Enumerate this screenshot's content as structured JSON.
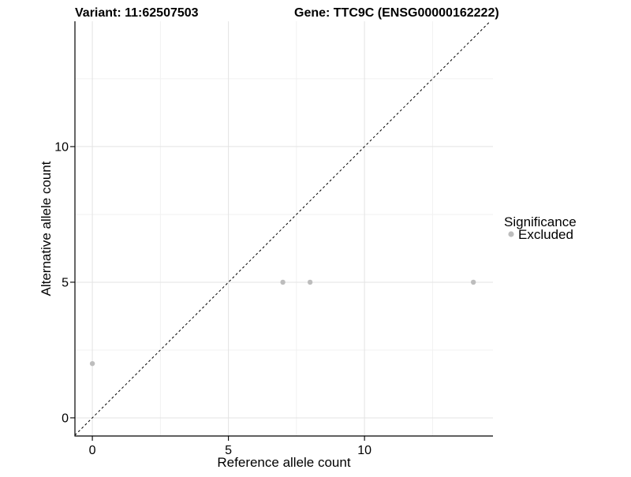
{
  "header": {
    "variant_title": "Variant: 11:62507503",
    "gene_title": "Gene: TTC9C (ENSG00000162222)"
  },
  "legend": {
    "title": "Significance",
    "items": [
      {
        "label": "Excluded",
        "color": "#bdbdbd"
      }
    ]
  },
  "chart_data": {
    "type": "scatter",
    "title": "Variant: 11:62507503 / Gene: TTC9C (ENSG00000162222)",
    "xlabel": "Reference allele count",
    "ylabel": "Alternative allele count",
    "xlim": [
      -0.64,
      14.72
    ],
    "ylim": [
      -0.67,
      14.62
    ],
    "x_ticks": [
      0,
      5,
      10
    ],
    "y_ticks": [
      0,
      5,
      10
    ],
    "x_tick_labels": [
      "0",
      "5",
      "10"
    ],
    "y_tick_labels": [
      "0",
      "5",
      "10"
    ],
    "x_minor_gridlines": [
      2.5,
      7.5,
      12.5
    ],
    "y_minor_gridlines": [
      2.5,
      7.5,
      12.5
    ],
    "grid": "major and minor, light gray on white",
    "legend_position": "right",
    "series": [
      {
        "name": "Excluded",
        "color": "#bdbdbd",
        "points": [
          {
            "x": 0,
            "y": 2
          },
          {
            "x": 7,
            "y": 5
          },
          {
            "x": 8,
            "y": 5
          },
          {
            "x": 14,
            "y": 5
          }
        ]
      }
    ],
    "identity_line": {
      "style": "dashed",
      "color": "#000000"
    }
  },
  "style_colors": {
    "background": "#ffffff",
    "grid_major": "#e3e3e3",
    "grid_minor": "#f1f1f1",
    "axis": "#000000",
    "point": "#bdbdbd"
  }
}
